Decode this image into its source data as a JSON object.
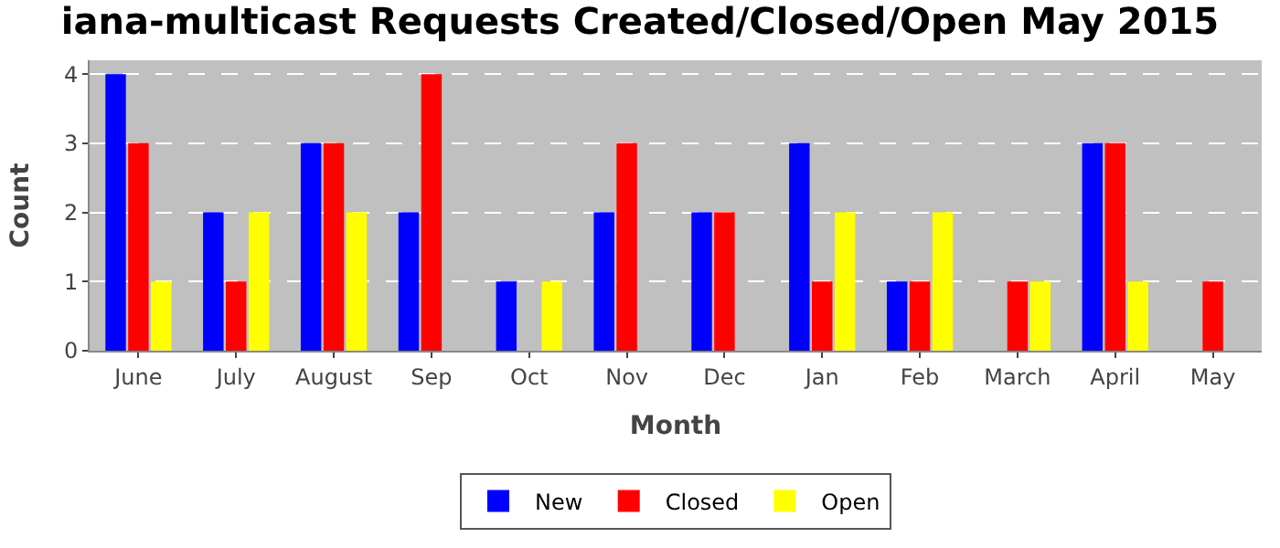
{
  "chart_data": {
    "type": "bar",
    "title": "iana-multicast Requests Created/Closed/Open May 2015",
    "xlabel": "Month",
    "ylabel": "Count",
    "categories": [
      "June",
      "July",
      "August",
      "Sep",
      "Oct",
      "Nov",
      "Dec",
      "Jan",
      "Feb",
      "March",
      "April",
      "May"
    ],
    "series": [
      {
        "name": "New",
        "color": "#0000ff",
        "values": [
          4,
          2,
          3,
          2,
          1,
          2,
          2,
          3,
          1,
          0,
          3,
          0
        ]
      },
      {
        "name": "Closed",
        "color": "#ff0000",
        "values": [
          3,
          1,
          3,
          4,
          0,
          3,
          2,
          1,
          1,
          1,
          3,
          1
        ]
      },
      {
        "name": "Open",
        "color": "#ffff00",
        "values": [
          1,
          2,
          2,
          0,
          1,
          0,
          0,
          2,
          2,
          1,
          1,
          0
        ]
      }
    ],
    "ylim": [
      0,
      4.2
    ],
    "yticks": [
      0,
      1,
      2,
      3,
      4
    ],
    "grid": "y",
    "legend": "bottom"
  }
}
